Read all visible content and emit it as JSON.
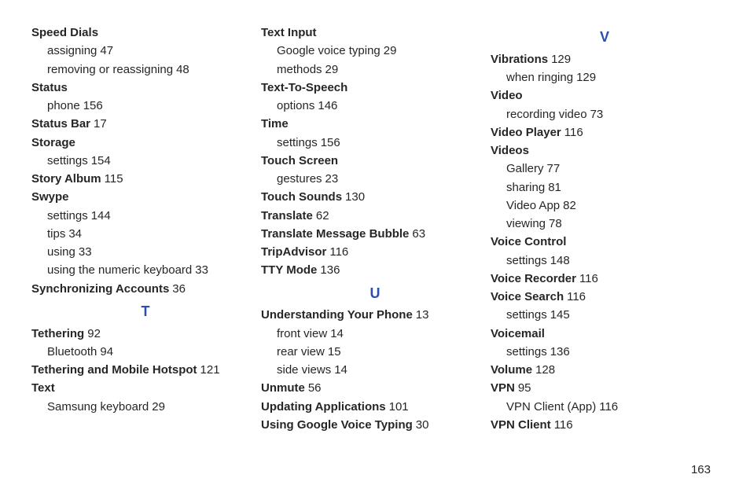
{
  "pageNumber": "163",
  "letterColor": "#2a4fb0",
  "textColor": "#262626",
  "columns": [
    {
      "items": [
        {
          "type": "topic",
          "label": "Speed Dials"
        },
        {
          "type": "sub",
          "label": "assigning",
          "page": "47"
        },
        {
          "type": "sub",
          "label": "removing or reassigning",
          "page": "48"
        },
        {
          "type": "topic",
          "label": "Status"
        },
        {
          "type": "sub",
          "label": "phone",
          "page": "156"
        },
        {
          "type": "topic",
          "label": "Status Bar",
          "page": "17"
        },
        {
          "type": "topic",
          "label": "Storage"
        },
        {
          "type": "sub",
          "label": "settings",
          "page": "154"
        },
        {
          "type": "topic",
          "label": "Story Album",
          "page": "115"
        },
        {
          "type": "topic",
          "label": "Swype"
        },
        {
          "type": "sub",
          "label": "settings",
          "page": "144"
        },
        {
          "type": "sub",
          "label": "tips",
          "page": "34"
        },
        {
          "type": "sub",
          "label": "using",
          "page": "33"
        },
        {
          "type": "sub",
          "label": "using the numeric keyboard",
          "page": "33"
        },
        {
          "type": "topic",
          "label": "Synchronizing Accounts",
          "page": "36"
        },
        {
          "type": "letter",
          "label": "T"
        },
        {
          "type": "topic",
          "label": "Tethering",
          "page": "92"
        },
        {
          "type": "sub",
          "label": "Bluetooth",
          "page": "94"
        },
        {
          "type": "topic",
          "label": "Tethering and Mobile Hotspot",
          "page": "121"
        },
        {
          "type": "topic",
          "label": "Text"
        },
        {
          "type": "sub",
          "label": "Samsung keyboard",
          "page": "29"
        }
      ]
    },
    {
      "items": [
        {
          "type": "topic",
          "label": "Text Input"
        },
        {
          "type": "sub",
          "label": "Google voice typing",
          "page": "29"
        },
        {
          "type": "sub",
          "label": "methods",
          "page": "29"
        },
        {
          "type": "topic",
          "label": "Text-To-Speech"
        },
        {
          "type": "sub",
          "label": "options",
          "page": "146"
        },
        {
          "type": "topic",
          "label": "Time"
        },
        {
          "type": "sub",
          "label": "settings",
          "page": "156"
        },
        {
          "type": "topic",
          "label": "Touch Screen"
        },
        {
          "type": "sub",
          "label": "gestures",
          "page": "23"
        },
        {
          "type": "topic",
          "label": "Touch Sounds",
          "page": "130"
        },
        {
          "type": "topic",
          "label": "Translate",
          "page": "62"
        },
        {
          "type": "topic",
          "label": "Translate Message Bubble",
          "page": "63"
        },
        {
          "type": "topic",
          "label": "TripAdvisor",
          "page": "116"
        },
        {
          "type": "topic",
          "label": "TTY Mode",
          "page": "136"
        },
        {
          "type": "letter",
          "label": "U"
        },
        {
          "type": "topic",
          "label": "Understanding Your Phone",
          "page": "13"
        },
        {
          "type": "sub",
          "label": "front view",
          "page": "14"
        },
        {
          "type": "sub",
          "label": "rear view",
          "page": "15"
        },
        {
          "type": "sub",
          "label": "side views",
          "page": "14"
        },
        {
          "type": "topic",
          "label": "Unmute",
          "page": "56"
        },
        {
          "type": "topic",
          "label": "Updating Applications",
          "page": "101"
        },
        {
          "type": "topic",
          "label": "Using Google Voice Typing",
          "page": "30"
        }
      ]
    },
    {
      "items": [
        {
          "type": "letter",
          "label": "V"
        },
        {
          "type": "topic",
          "label": "Vibrations",
          "page": "129"
        },
        {
          "type": "sub",
          "label": "when ringing",
          "page": "129"
        },
        {
          "type": "topic",
          "label": "Video"
        },
        {
          "type": "sub",
          "label": "recording video",
          "page": "73"
        },
        {
          "type": "topic",
          "label": "Video Player",
          "page": "116"
        },
        {
          "type": "topic",
          "label": "Videos"
        },
        {
          "type": "sub",
          "label": "Gallery",
          "page": "77"
        },
        {
          "type": "sub",
          "label": "sharing",
          "page": "81"
        },
        {
          "type": "sub",
          "label": "Video App",
          "page": "82"
        },
        {
          "type": "sub",
          "label": "viewing",
          "page": "78"
        },
        {
          "type": "topic",
          "label": "Voice Control"
        },
        {
          "type": "sub",
          "label": "settings",
          "page": "148"
        },
        {
          "type": "topic",
          "label": "Voice Recorder",
          "page": "116"
        },
        {
          "type": "topic",
          "label": "Voice Search",
          "page": "116"
        },
        {
          "type": "sub",
          "label": "settings",
          "page": "145"
        },
        {
          "type": "topic",
          "label": "Voicemail"
        },
        {
          "type": "sub",
          "label": "settings",
          "page": "136"
        },
        {
          "type": "topic",
          "label": "Volume",
          "page": "128"
        },
        {
          "type": "topic",
          "label": "VPN",
          "page": "95"
        },
        {
          "type": "sub",
          "label": "VPN Client (App)",
          "page": "116"
        },
        {
          "type": "topic",
          "label": "VPN Client",
          "page": "116"
        }
      ]
    }
  ]
}
